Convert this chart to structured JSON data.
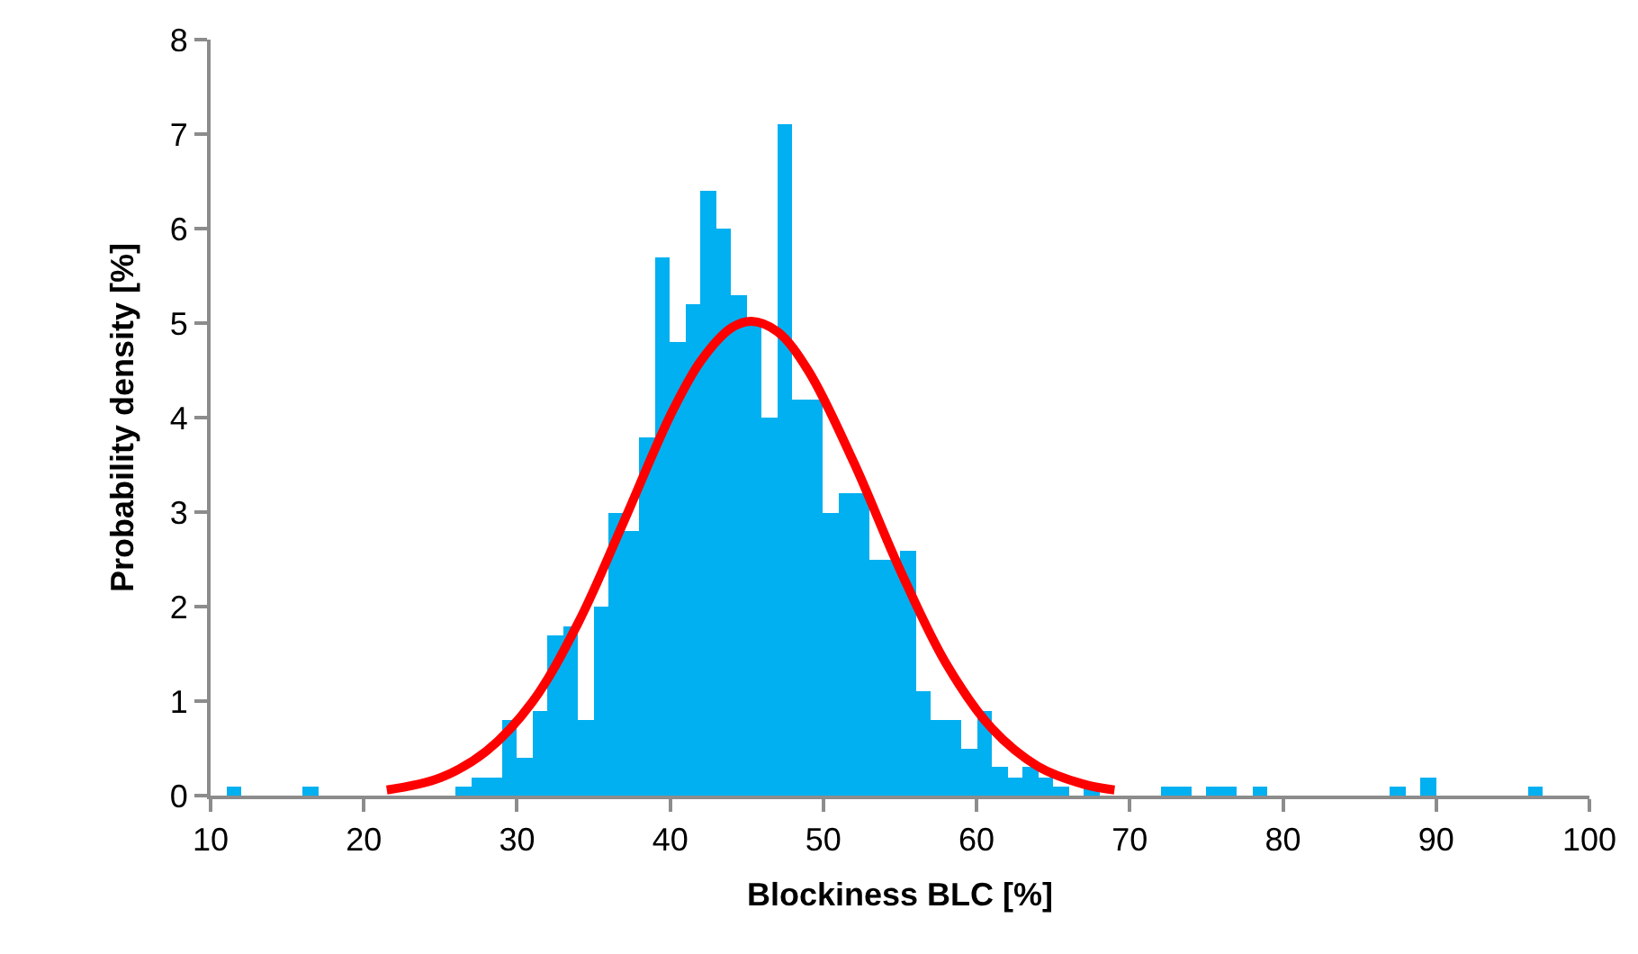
{
  "chart_data": {
    "type": "histogram",
    "xlabel": "Blockiness BLC [%]",
    "ylabel": "Probability density [%]",
    "xlim": [
      10,
      100
    ],
    "xticks": [
      10,
      20,
      30,
      40,
      50,
      60,
      70,
      80,
      90,
      100
    ],
    "ylim": [
      0,
      8
    ],
    "yticks": [
      0,
      1,
      2,
      3,
      4,
      5,
      6,
      7,
      8
    ],
    "series": [
      {
        "color": "#00b0f0",
        "bins": [
          11,
          12,
          13,
          14,
          15,
          16,
          17,
          18,
          19,
          20,
          21,
          22,
          23,
          24,
          25,
          26,
          27,
          28,
          29,
          30,
          31,
          32,
          33,
          34,
          35,
          36,
          37,
          38,
          39,
          40,
          41,
          42,
          43,
          44,
          45,
          46,
          47,
          48,
          49,
          50,
          51,
          52,
          53,
          54,
          55,
          56,
          57,
          58,
          59,
          60,
          61,
          62,
          63,
          64,
          65,
          66,
          67,
          68,
          69,
          70,
          71,
          72,
          73,
          74,
          75,
          76,
          77,
          78,
          79,
          80,
          81,
          82,
          83,
          84,
          85,
          86,
          87,
          88,
          89,
          90,
          91,
          92,
          93,
          94,
          95,
          96,
          97
        ],
        "values": [
          0.1,
          0,
          0,
          0,
          0,
          0.1,
          0,
          0,
          0,
          0,
          0,
          0,
          0,
          0,
          0,
          0.1,
          0.2,
          0.2,
          0.8,
          0.4,
          0.9,
          1.7,
          1.8,
          0.8,
          2.0,
          3.0,
          2.8,
          3.8,
          5.7,
          4.8,
          5.2,
          6.4,
          6.0,
          5.3,
          5.0,
          4.0,
          7.1,
          4.2,
          4.2,
          3.0,
          3.2,
          3.2,
          2.5,
          2.5,
          2.6,
          1.1,
          0.8,
          0.8,
          0.5,
          0.9,
          0.3,
          0.2,
          0.3,
          0.2,
          0.1,
          0,
          0.1,
          0,
          0,
          0,
          0,
          0.1,
          0.1,
          0,
          0.1,
          0.1,
          0,
          0.1,
          0,
          0,
          0,
          0,
          0,
          0,
          0,
          0,
          0.1,
          0,
          0.2,
          0,
          0,
          0,
          0,
          0,
          0,
          0.1
        ]
      },
      {
        "type": "line",
        "color": "#ff0000",
        "x": [
          21.5,
          25,
          28,
          31,
          34,
          37,
          40,
          42,
          44,
          45.3,
          47,
          49,
          52,
          55,
          58,
          61,
          64,
          67,
          69
        ],
        "values": [
          0.06,
          0.19,
          0.47,
          0.99,
          1.83,
          2.91,
          4.02,
          4.6,
          4.95,
          5.02,
          4.91,
          4.5,
          3.52,
          2.39,
          1.4,
          0.71,
          0.31,
          0.12,
          0.06
        ]
      }
    ]
  }
}
